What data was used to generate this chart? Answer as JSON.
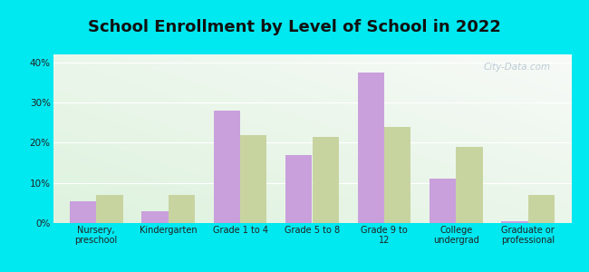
{
  "title": "School Enrollment by Level of School in 2022",
  "categories": [
    "Nursery,\npreschool",
    "Kindergarten",
    "Grade 1 to 4",
    "Grade 5 to 8",
    "Grade 9 to\n12",
    "College\nundergrad",
    "Graduate or\nprofessional"
  ],
  "zip_values": [
    5.5,
    3.0,
    28.0,
    17.0,
    37.5,
    11.0,
    0.5
  ],
  "tn_values": [
    7.0,
    7.0,
    22.0,
    21.5,
    24.0,
    19.0,
    7.0
  ],
  "zip_color": "#c9a0dc",
  "tn_color": "#c8d4a0",
  "background_color": "#00e8f0",
  "ylim_max": 42,
  "yticks": [
    0,
    10,
    20,
    30,
    40
  ],
  "ytick_labels": [
    "0%",
    "10%",
    "20%",
    "30%",
    "40%"
  ],
  "watermark": "City-Data.com",
  "title_fontsize": 13,
  "bar_width": 0.37
}
